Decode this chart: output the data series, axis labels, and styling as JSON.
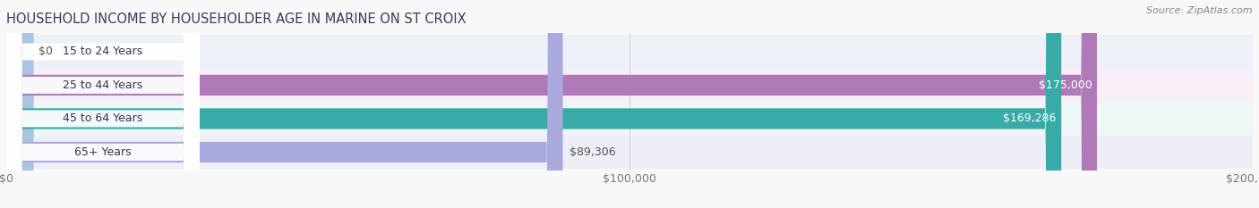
{
  "title": "HOUSEHOLD INCOME BY HOUSEHOLDER AGE IN MARINE ON ST CROIX",
  "source": "Source: ZipAtlas.com",
  "categories": [
    "15 to 24 Years",
    "25 to 44 Years",
    "45 to 64 Years",
    "65+ Years"
  ],
  "values": [
    0,
    175000,
    169286,
    89306
  ],
  "bar_colors": [
    "#aac4e2",
    "#b07ab8",
    "#38aaa8",
    "#aaaade"
  ],
  "xmax": 200000,
  "xticks": [
    0,
    100000,
    200000
  ],
  "xtick_labels": [
    "$0",
    "$100,000",
    "$200,000"
  ],
  "bar_height": 0.62,
  "background_color": "#f8f8f8",
  "value_labels": [
    "$0",
    "$175,000",
    "$169,286",
    "$89,306"
  ],
  "figsize": [
    14.06,
    2.33
  ],
  "dpi": 100,
  "title_color": "#3a3a5c",
  "source_color": "#888888",
  "row_bg_light": "#f0f2f8",
  "row_bg_white": "#ffffff"
}
